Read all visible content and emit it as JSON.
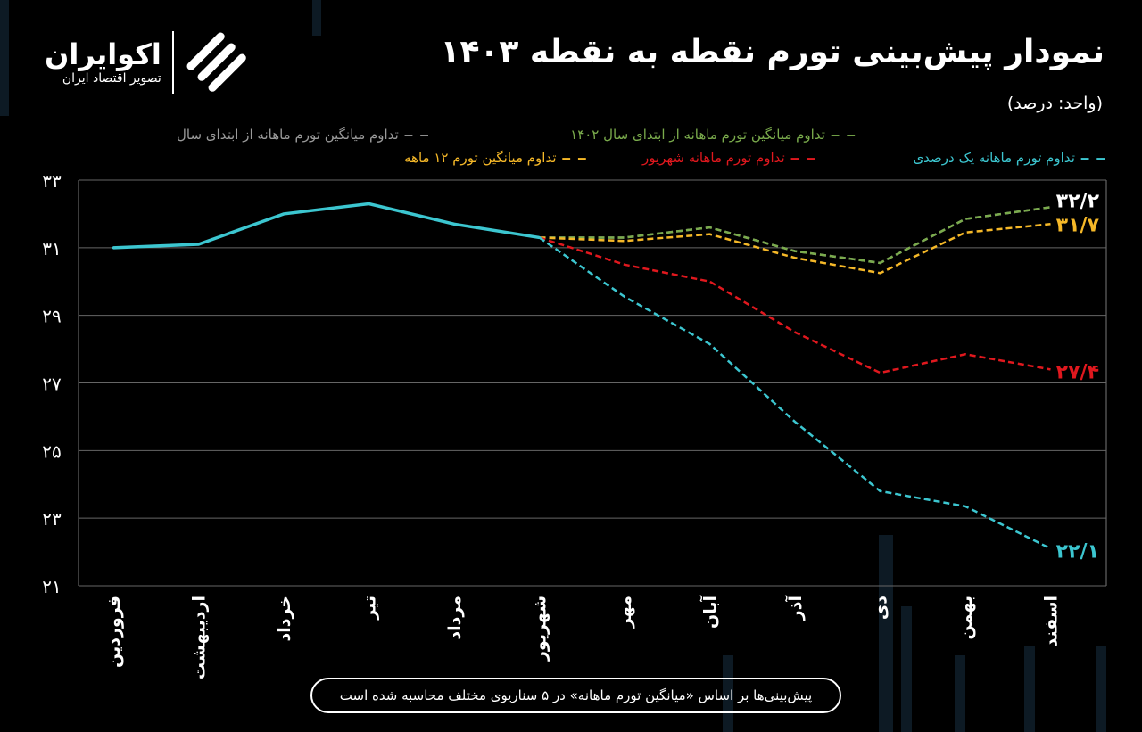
{
  "logo": {
    "name": "اکوایران",
    "tagline": "تصویر اقتصاد ایران"
  },
  "header": {
    "title": "نمودار پیش‌بینی تورم نقطه به نقطه ۱۴۰۳",
    "unit": "(واحد: درصد)"
  },
  "footer": {
    "note": "پیش‌بینی‌ها بر اساس «میانگین تورم ماهانه» در ۵ سناریوی مختلف محاسبه شده است"
  },
  "chart_data": {
    "type": "line",
    "title": "نمودار پیش‌بینی تورم نقطه به نقطه ۱۴۰۳",
    "ylabel": "(واحد: درصد)",
    "categories": [
      "فروردین",
      "اردیبهشت",
      "خرداد",
      "تیر",
      "مرداد",
      "شهریور",
      "مهر",
      "آبان",
      "آذر",
      "دی",
      "بهمن",
      "اسفند"
    ],
    "ylim": [
      21,
      33
    ],
    "yticks": [
      33,
      31,
      29,
      27,
      25,
      23,
      21
    ],
    "ytick_labels": [
      "۳۳",
      "۳۱",
      "۲۹",
      "۲۷",
      "۲۵",
      "۲۳",
      "۲۱"
    ],
    "grid": true,
    "legend": "top",
    "actual": {
      "color": "#3cc6d0",
      "values": [
        31.0,
        31.1,
        32.0,
        32.3,
        31.7,
        31.3,
        null,
        null,
        null,
        null,
        null,
        null
      ]
    },
    "series": [
      {
        "name": "تداوم میانگین تورم ماهانه از ابتدای سال",
        "color": "#9a9a9a",
        "values": [
          null,
          null,
          null,
          null,
          null,
          31.3,
          31.3,
          31.6,
          30.9,
          30.55,
          31.85,
          32.2
        ]
      },
      {
        "name": "تداوم میانگین تورم ماهانه از ابتدای سال ۱۴۰۲",
        "color": "#7aab4c",
        "values": [
          null,
          null,
          null,
          null,
          null,
          31.3,
          31.3,
          31.6,
          30.9,
          30.55,
          31.85,
          32.2
        ],
        "end_label": "۳۲/۲",
        "end_label_color": "#ffffff"
      },
      {
        "name": "تداوم میانگین تورم ۱۲ ماهه",
        "color": "#f5b828",
        "values": [
          null,
          null,
          null,
          null,
          null,
          31.3,
          31.2,
          31.4,
          30.7,
          30.25,
          31.45,
          31.7
        ],
        "end_label": "۳۱/۷"
      },
      {
        "name": "تداوم تورم ماهانه شهریور",
        "color": "#e0181e",
        "values": [
          null,
          null,
          null,
          null,
          null,
          31.3,
          30.5,
          30.0,
          28.5,
          27.3,
          27.85,
          27.4
        ],
        "end_label": "۲۷/۴"
      },
      {
        "name": "تداوم تورم ماهانه یک درصدی",
        "color": "#3cc6d0",
        "values": [
          null,
          null,
          null,
          null,
          null,
          31.3,
          29.55,
          28.15,
          25.85,
          23.8,
          23.35,
          22.1
        ],
        "end_label": "۲۲/۱"
      }
    ]
  }
}
